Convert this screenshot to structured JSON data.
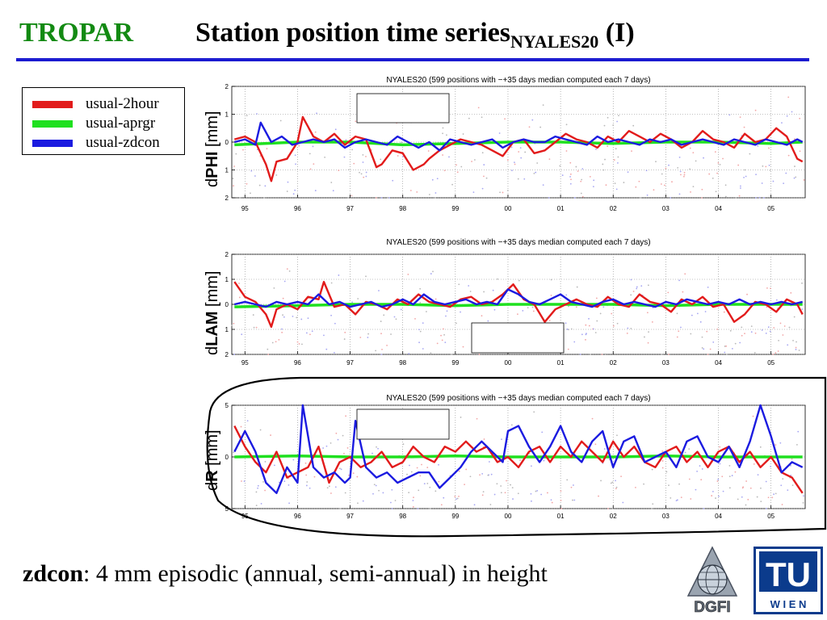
{
  "header": {
    "left_label": "TROPAR",
    "title_main": "Station position time series",
    "title_sub": "NYALES20",
    "title_suffix": " (I)"
  },
  "legend": {
    "items": [
      {
        "label": "usual-2hour",
        "color": "#e21b1b"
      },
      {
        "label": "usual-aprgr",
        "color": "#1fe01f"
      },
      {
        "label": "usual-zdcon",
        "color": "#1b1be0"
      }
    ]
  },
  "caption": {
    "bold": "zdcon",
    "rest": ": 4 mm episodic (annual, semi-annual) in height"
  },
  "logos": {
    "dgfi_text": "DGFI",
    "tu_text": "TU",
    "wien_text": "W I E N"
  },
  "chart_data": [
    {
      "type": "line",
      "title": "NYALES20 (599 positions with −+35 days median computed each 7 days)",
      "ylabel_prefix": "d",
      "ylabel_bold": "PHI",
      "ylabel_unit": " [mm]",
      "xlim": [
        1994.75,
        2005.65
      ],
      "ylim": [
        -2,
        2
      ],
      "yticks": [
        -2,
        -1,
        0,
        1,
        2
      ],
      "ytick_labels": [
        "2",
        "1",
        "0",
        "1",
        "2"
      ],
      "xticks": [
        1995,
        1996,
        1997,
        1998,
        1999,
        2000,
        2001,
        2002,
        2003,
        2004,
        2005
      ],
      "xtick_labels": [
        "95",
        "96",
        "97",
        "98",
        "99",
        "00",
        "01",
        "02",
        "03",
        "04",
        "05"
      ],
      "grid": true,
      "scatter_background": true,
      "series": [
        {
          "name": "usual-2hour",
          "color": "#e21b1b",
          "x": [
            1994.8,
            1995.0,
            1995.2,
            1995.4,
            1995.5,
            1995.6,
            1995.8,
            1996.0,
            1996.1,
            1996.3,
            1996.5,
            1996.7,
            1996.9,
            1997.1,
            1997.3,
            1997.5,
            1997.6,
            1997.8,
            1998.0,
            1998.2,
            1998.4,
            1998.5,
            1998.7,
            1998.9,
            1999.1,
            1999.3,
            1999.5,
            1999.7,
            1999.9,
            2000.1,
            2000.3,
            2000.5,
            2000.7,
            2000.9,
            2001.1,
            2001.3,
            2001.5,
            2001.7,
            2001.9,
            2002.1,
            2002.3,
            2002.5,
            2002.7,
            2002.9,
            2003.1,
            2003.3,
            2003.5,
            2003.7,
            2003.9,
            2004.1,
            2004.3,
            2004.5,
            2004.7,
            2004.9,
            2005.1,
            2005.3,
            2005.5,
            2005.6
          ],
          "y": [
            0.1,
            0.2,
            0.0,
            -0.8,
            -1.4,
            -0.7,
            -0.6,
            0.0,
            0.9,
            0.2,
            0.0,
            0.3,
            -0.1,
            0.2,
            0.1,
            -0.9,
            -0.8,
            -0.3,
            -0.4,
            -1.0,
            -0.8,
            -0.6,
            -0.3,
            -0.1,
            0.1,
            0.0,
            -0.1,
            -0.3,
            -0.5,
            0.0,
            0.1,
            -0.4,
            -0.3,
            0.0,
            0.3,
            0.1,
            0.0,
            -0.2,
            0.2,
            0.0,
            0.4,
            0.2,
            0.0,
            0.3,
            0.1,
            -0.2,
            0.0,
            0.4,
            0.1,
            0.0,
            -0.2,
            0.3,
            0.0,
            0.1,
            0.5,
            0.2,
            -0.6,
            -0.7
          ]
        },
        {
          "name": "usual-aprgr",
          "color": "#1fe01f",
          "x": [
            1994.8,
            1996.0,
            1997.0,
            1998.0,
            1999.0,
            2000.0,
            2001.0,
            2002.0,
            2003.0,
            2004.0,
            2005.0,
            2005.6
          ],
          "y": [
            -0.1,
            0.0,
            0.0,
            -0.1,
            -0.05,
            0.0,
            0.0,
            -0.05,
            0.0,
            0.0,
            -0.05,
            0.0
          ]
        },
        {
          "name": "usual-zdcon",
          "color": "#1b1be0",
          "x": [
            1994.8,
            1995.0,
            1995.2,
            1995.3,
            1995.5,
            1995.7,
            1995.9,
            1996.1,
            1996.3,
            1996.5,
            1996.7,
            1996.9,
            1997.1,
            1997.3,
            1997.5,
            1997.7,
            1997.9,
            1998.1,
            1998.3,
            1998.5,
            1998.7,
            1998.9,
            1999.1,
            1999.3,
            1999.5,
            1999.7,
            1999.9,
            2000.1,
            2000.3,
            2000.5,
            2000.7,
            2000.9,
            2001.1,
            2001.3,
            2001.5,
            2001.7,
            2001.9,
            2002.1,
            2002.3,
            2002.5,
            2002.7,
            2002.9,
            2003.1,
            2003.3,
            2003.5,
            2003.7,
            2003.9,
            2004.1,
            2004.3,
            2004.5,
            2004.7,
            2004.9,
            2005.1,
            2005.3,
            2005.5,
            2005.6
          ],
          "y": [
            0.0,
            0.1,
            -0.1,
            0.7,
            0.0,
            0.2,
            -0.1,
            0.0,
            0.1,
            0.0,
            0.1,
            -0.2,
            0.0,
            0.1,
            0.0,
            -0.1,
            0.2,
            0.0,
            -0.2,
            0.0,
            -0.3,
            0.1,
            0.0,
            -0.1,
            0.0,
            0.1,
            -0.2,
            0.0,
            0.1,
            0.0,
            0.0,
            0.2,
            0.1,
            0.0,
            -0.1,
            0.2,
            0.0,
            0.1,
            0.0,
            -0.1,
            0.1,
            0.0,
            0.1,
            -0.1,
            0.0,
            0.1,
            0.0,
            -0.1,
            0.1,
            0.0,
            -0.1,
            0.1,
            0.0,
            -0.1,
            0.1,
            0.0
          ]
        }
      ]
    },
    {
      "type": "line",
      "title": "NYALES20 (599 positions with −+35 days median computed each 7 days)",
      "ylabel_prefix": "d",
      "ylabel_bold": "LAM",
      "ylabel_unit": " [mm]",
      "xlim": [
        1994.75,
        2005.65
      ],
      "ylim": [
        -2,
        2
      ],
      "yticks": [
        -2,
        -1,
        0,
        1,
        2
      ],
      "ytick_labels": [
        "2",
        "1",
        "0",
        "1",
        "2"
      ],
      "xticks": [
        1995,
        1996,
        1997,
        1998,
        1999,
        2000,
        2001,
        2002,
        2003,
        2004,
        2005
      ],
      "xtick_labels": [
        "95",
        "96",
        "97",
        "98",
        "99",
        "00",
        "01",
        "02",
        "03",
        "04",
        "05"
      ],
      "grid": true,
      "scatter_background": true,
      "series": [
        {
          "name": "usual-2hour",
          "color": "#e21b1b",
          "x": [
            1994.8,
            1995.0,
            1995.2,
            1995.4,
            1995.5,
            1995.6,
            1995.8,
            1996.0,
            1996.2,
            1996.4,
            1996.5,
            1996.7,
            1996.9,
            1997.1,
            1997.3,
            1997.5,
            1997.7,
            1997.9,
            1998.1,
            1998.3,
            1998.5,
            1998.7,
            1998.9,
            1999.1,
            1999.3,
            1999.5,
            1999.7,
            1999.9,
            2000.1,
            2000.3,
            2000.5,
            2000.7,
            2000.9,
            2001.1,
            2001.3,
            2001.5,
            2001.7,
            2001.9,
            2002.1,
            2002.3,
            2002.5,
            2002.7,
            2002.9,
            2003.1,
            2003.3,
            2003.5,
            2003.7,
            2003.9,
            2004.1,
            2004.3,
            2004.5,
            2004.7,
            2004.9,
            2005.1,
            2005.3,
            2005.5,
            2005.6
          ],
          "y": [
            0.9,
            0.3,
            0.1,
            -0.4,
            -0.9,
            -0.2,
            0.0,
            -0.2,
            0.3,
            0.2,
            0.9,
            -0.1,
            0.0,
            -0.4,
            0.1,
            0.0,
            -0.2,
            0.2,
            0.0,
            0.4,
            0.1,
            0.0,
            -0.1,
            0.2,
            0.3,
            0.0,
            0.1,
            0.4,
            0.8,
            0.2,
            0.0,
            -0.7,
            -0.2,
            0.0,
            0.2,
            0.0,
            -0.1,
            0.3,
            0.0,
            -0.1,
            0.4,
            0.1,
            0.0,
            -0.3,
            0.2,
            0.0,
            0.3,
            -0.1,
            0.0,
            -0.7,
            -0.4,
            0.1,
            0.0,
            -0.3,
            0.2,
            0.0,
            -0.4
          ]
        },
        {
          "name": "usual-aprgr",
          "color": "#1fe01f",
          "x": [
            1994.8,
            1996.0,
            1997.0,
            1998.0,
            1999.0,
            2000.0,
            2001.0,
            2002.0,
            2003.0,
            2004.0,
            2005.0,
            2005.6
          ],
          "y": [
            -0.1,
            -0.05,
            0.0,
            0.0,
            -0.05,
            0.0,
            0.0,
            0.0,
            -0.05,
            0.0,
            0.0,
            0.0
          ]
        },
        {
          "name": "usual-zdcon",
          "color": "#1b1be0",
          "x": [
            1994.8,
            1995.0,
            1995.2,
            1995.4,
            1995.6,
            1995.8,
            1996.0,
            1996.2,
            1996.4,
            1996.6,
            1996.8,
            1997.0,
            1997.2,
            1997.4,
            1997.6,
            1997.8,
            1998.0,
            1998.2,
            1998.4,
            1998.6,
            1998.8,
            1999.0,
            1999.2,
            1999.4,
            1999.6,
            1999.8,
            2000.0,
            2000.2,
            2000.4,
            2000.6,
            2000.8,
            2001.0,
            2001.2,
            2001.4,
            2001.6,
            2001.8,
            2002.0,
            2002.2,
            2002.4,
            2002.6,
            2002.8,
            2003.0,
            2003.2,
            2003.4,
            2003.6,
            2003.8,
            2004.0,
            2004.2,
            2004.4,
            2004.6,
            2004.8,
            2005.0,
            2005.2,
            2005.4,
            2005.6
          ],
          "y": [
            0.0,
            0.1,
            0.0,
            -0.1,
            0.1,
            0.0,
            0.1,
            0.0,
            0.4,
            0.0,
            0.1,
            -0.1,
            0.0,
            0.1,
            -0.1,
            0.0,
            0.2,
            0.0,
            0.4,
            0.1,
            0.0,
            0.1,
            0.2,
            0.0,
            0.1,
            0.0,
            0.6,
            0.4,
            0.1,
            0.0,
            0.2,
            0.4,
            0.1,
            0.0,
            -0.1,
            0.1,
            0.2,
            0.0,
            0.1,
            0.0,
            -0.1,
            0.1,
            0.0,
            0.2,
            0.1,
            0.0,
            0.1,
            0.0,
            0.2,
            0.0,
            0.1,
            0.0,
            0.1,
            0.0,
            0.1
          ]
        }
      ]
    },
    {
      "type": "line",
      "title": "NYALES20 (599 positions with −+35 days median computed each 7 days)",
      "ylabel_prefix": "d",
      "ylabel_bold": "R",
      "ylabel_unit": " [mm]",
      "xlim": [
        1994.75,
        2005.65
      ],
      "ylim": [
        -5,
        5
      ],
      "yticks": [
        -5,
        0,
        5
      ],
      "ytick_labels": [
        "5",
        "0",
        "5"
      ],
      "xticks": [
        1995,
        1996,
        1997,
        1998,
        1999,
        2000,
        2001,
        2002,
        2003,
        2004,
        2005
      ],
      "xtick_labels": [
        "95",
        "96",
        "97",
        "98",
        "99",
        "00",
        "01",
        "02",
        "03",
        "04",
        "05"
      ],
      "grid": true,
      "scatter_background": true,
      "series": [
        {
          "name": "usual-2hour",
          "color": "#e21b1b",
          "x": [
            1994.8,
            1995.0,
            1995.2,
            1995.4,
            1995.6,
            1995.8,
            1996.0,
            1996.2,
            1996.4,
            1996.6,
            1996.8,
            1997.0,
            1997.2,
            1997.4,
            1997.6,
            1997.8,
            1998.0,
            1998.2,
            1998.4,
            1998.6,
            1998.8,
            1999.0,
            1999.2,
            1999.4,
            1999.6,
            1999.8,
            2000.0,
            2000.2,
            2000.4,
            2000.6,
            2000.8,
            2001.0,
            2001.2,
            2001.4,
            2001.6,
            2001.8,
            2002.0,
            2002.2,
            2002.4,
            2002.6,
            2002.8,
            2003.0,
            2003.2,
            2003.4,
            2003.6,
            2003.8,
            2004.0,
            2004.2,
            2004.4,
            2004.6,
            2004.8,
            2005.0,
            2005.2,
            2005.4,
            2005.6
          ],
          "y": [
            3.0,
            1.0,
            -0.5,
            -1.5,
            0.5,
            -2.0,
            -1.5,
            -1.0,
            1.0,
            -2.5,
            -0.5,
            0.0,
            -1.0,
            -0.5,
            0.5,
            -1.0,
            -0.5,
            1.0,
            0.0,
            -0.5,
            1.0,
            0.5,
            1.5,
            0.5,
            1.0,
            -0.5,
            0.0,
            -1.0,
            0.5,
            1.0,
            -0.5,
            1.0,
            0.0,
            1.5,
            0.5,
            -0.5,
            1.5,
            0.0,
            1.0,
            -0.5,
            -1.0,
            0.5,
            1.0,
            -0.5,
            0.5,
            -1.0,
            0.5,
            1.0,
            -0.5,
            0.5,
            -1.0,
            0.0,
            -1.5,
            -2.0,
            -3.5
          ]
        },
        {
          "name": "usual-aprgr",
          "color": "#1fe01f",
          "x": [
            1994.8,
            1996.0,
            1997.0,
            1998.0,
            1999.0,
            2000.0,
            2001.0,
            2002.0,
            2003.0,
            2004.0,
            2005.0,
            2005.6
          ],
          "y": [
            0.0,
            0.1,
            0.0,
            0.0,
            0.1,
            0.0,
            0.0,
            0.0,
            0.1,
            0.0,
            0.0,
            0.0
          ]
        },
        {
          "name": "usual-zdcon",
          "color": "#1b1be0",
          "x": [
            1994.8,
            1995.0,
            1995.2,
            1995.4,
            1995.6,
            1995.8,
            1996.0,
            1996.1,
            1996.3,
            1996.5,
            1996.7,
            1996.9,
            1997.0,
            1997.1,
            1997.3,
            1997.5,
            1997.7,
            1997.9,
            1998.1,
            1998.3,
            1998.5,
            1998.7,
            1998.9,
            1999.1,
            1999.3,
            1999.5,
            1999.7,
            1999.9,
            2000.0,
            2000.2,
            2000.4,
            2000.6,
            2000.8,
            2001.0,
            2001.2,
            2001.4,
            2001.6,
            2001.8,
            2002.0,
            2002.2,
            2002.4,
            2002.6,
            2002.8,
            2003.0,
            2003.2,
            2003.4,
            2003.6,
            2003.8,
            2004.0,
            2004.2,
            2004.4,
            2004.6,
            2004.8,
            2005.0,
            2005.2,
            2005.4,
            2005.6
          ],
          "y": [
            0.5,
            2.5,
            0.5,
            -2.5,
            -3.5,
            -1.0,
            -2.5,
            5.0,
            -1.0,
            -2.0,
            -1.5,
            -2.5,
            -2.0,
            3.5,
            -1.0,
            -2.0,
            -1.5,
            -2.5,
            -2.0,
            -1.5,
            -1.5,
            -3.0,
            -2.0,
            -1.0,
            0.5,
            1.5,
            0.5,
            -0.5,
            2.5,
            3.0,
            1.0,
            -0.5,
            1.0,
            3.0,
            0.5,
            -0.5,
            1.5,
            2.5,
            -1.0,
            1.5,
            2.0,
            -0.5,
            0.0,
            0.5,
            -1.0,
            1.5,
            2.0,
            0.0,
            -0.5,
            1.0,
            -1.0,
            1.5,
            5.0,
            2.0,
            -1.5,
            -0.5,
            -1.0
          ]
        }
      ]
    }
  ]
}
